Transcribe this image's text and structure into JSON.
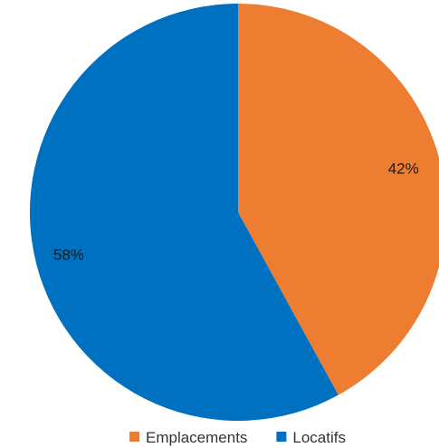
{
  "chart_data": {
    "type": "pie",
    "title": "",
    "categories": [
      "Emplacements",
      "Locatifs"
    ],
    "values": [
      42,
      58
    ],
    "labels": [
      "42%",
      "58%"
    ],
    "colors": [
      "#ED7D31",
      "#0070C0"
    ],
    "start_angle_deg": 0,
    "direction": "clockwise",
    "legend_position": "bottom"
  }
}
